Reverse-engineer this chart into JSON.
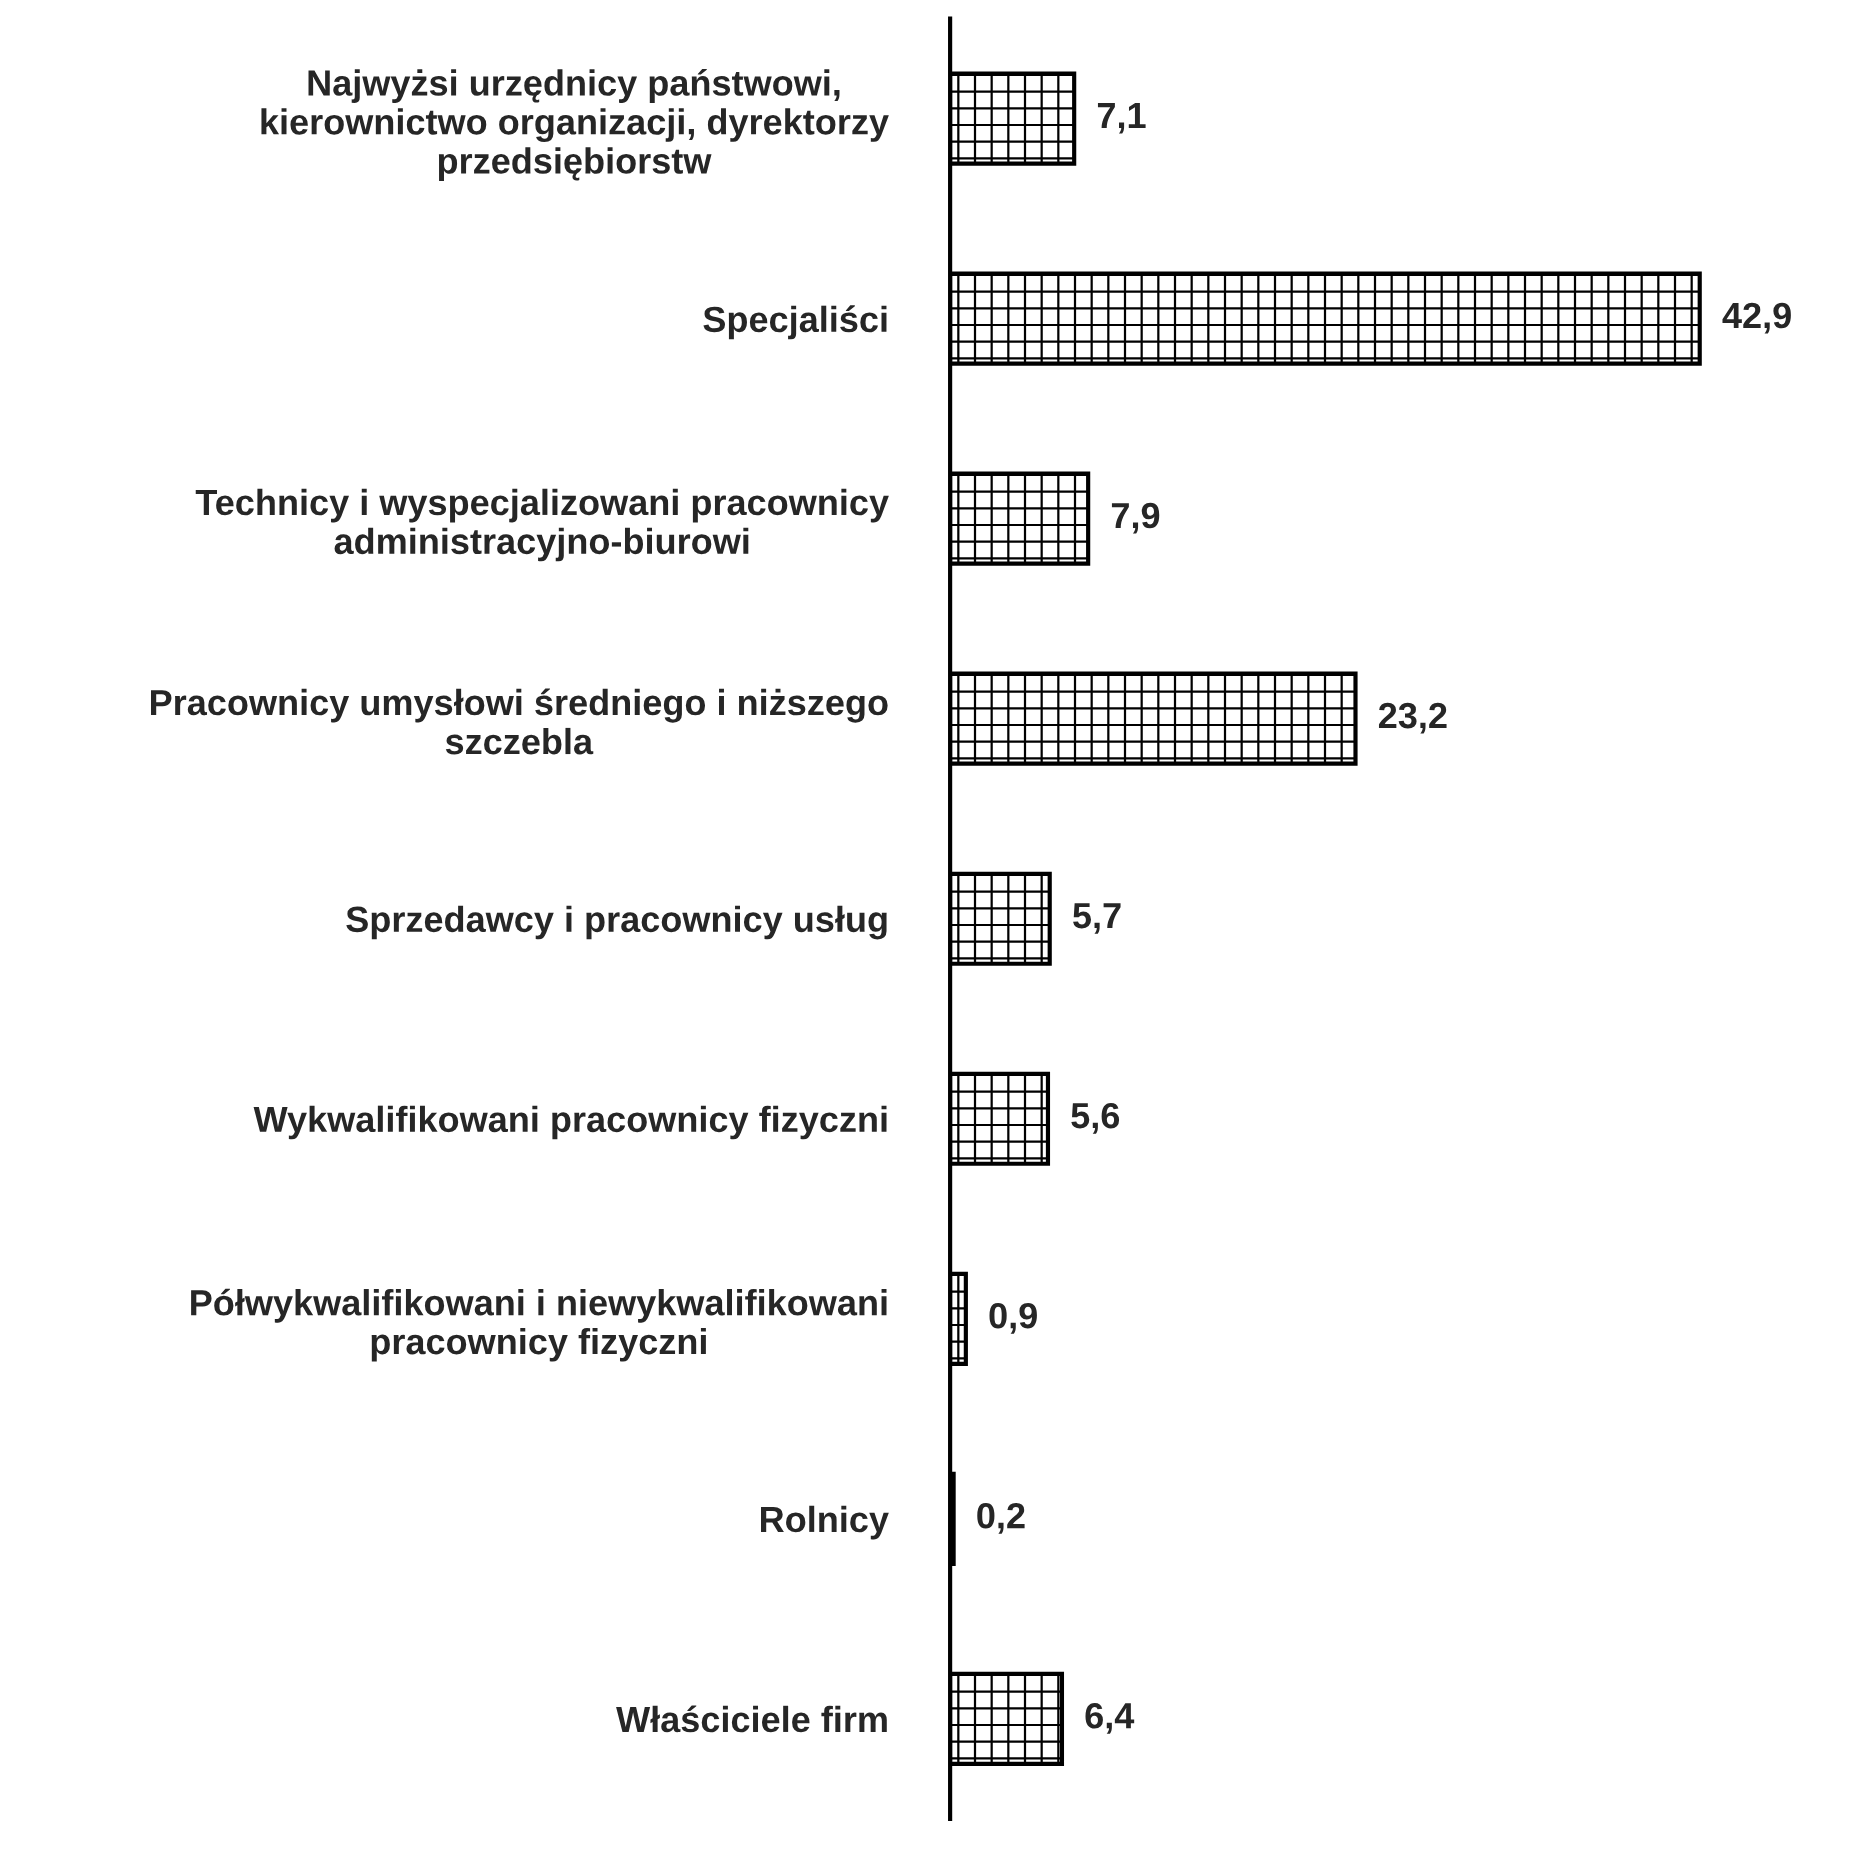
{
  "chart_data": {
    "type": "bar",
    "orientation": "horizontal",
    "categories": [
      "Najwyżsi urzędnicy państwowi,\nkierownictwo organizacji, dyrektorzy\nprzedsiębiorstw",
      "Specjaliści",
      "Technicy i wyspecjalizowani pracownicy\nadministracyjno-biurowi",
      "Pracownicy umysłowi średniego i niższego\nszczebla",
      "Sprzedawcy i pracownicy usług",
      "Wykwalifikowani pracownicy fizyczni",
      "Półwykwalifikowani i niewykwalifikowani\npracownicy fizyczni",
      "Rolnicy",
      "Właściciele firm"
    ],
    "values": [
      7.1,
      42.9,
      7.9,
      23.2,
      5.7,
      5.6,
      0.9,
      0.2,
      6.4
    ],
    "value_labels": [
      "7,1",
      "42,9",
      "7,9",
      "23,2",
      "5,7",
      "5,6",
      "0,9",
      "0,2",
      "6,4"
    ],
    "color": "#000000",
    "tick_labels": "y",
    "grid": false,
    "legend": false
  }
}
